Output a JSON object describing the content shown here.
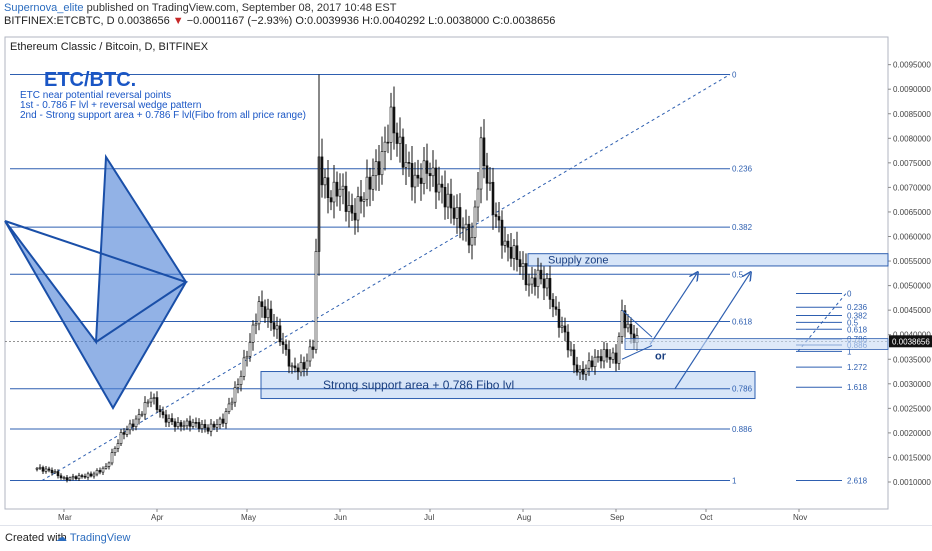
{
  "header": {
    "author": "Supernova_elite",
    "published": "published on TradingView.com, September 08, 2017 10:48 EST",
    "symbol": "BITFINEX:ETCBTC, D",
    "last": "0.0038656",
    "change": "−0.0001167 (−2.93%)",
    "open": "O:0.0039936",
    "high": "H:0.0040292",
    "low": "L:0.0038000",
    "close": "C:0.0038656"
  },
  "chart_data": {
    "type": "candlestick",
    "chart_title": "Ethereum Classic / Bitcoin, D, BITFINEX",
    "price_tag": "0.0038656",
    "y_ticks": [
      "0.0095000",
      "0.0090000",
      "0.0085000",
      "0.0080000",
      "0.0075000",
      "0.0070000",
      "0.0065000",
      "0.0060000",
      "0.0055000",
      "0.0050000",
      "0.0045000",
      "0.0040000",
      "0.0035000",
      "0.0030000",
      "0.0025000",
      "0.0020000",
      "0.0015000",
      "0.0010000"
    ],
    "x_ticks": [
      "Mar",
      "Apr",
      "May",
      "Jun",
      "Jul",
      "Aug",
      "Sep",
      "Oct",
      "Nov"
    ],
    "ylim": [
      0.0007,
      0.0097
    ],
    "close_series": [
      {
        "date": "2017-02-20",
        "close": 0.00128
      },
      {
        "date": "2017-02-25",
        "close": 0.00122
      },
      {
        "date": "2017-03-01",
        "close": 0.00106
      },
      {
        "date": "2017-03-05",
        "close": 0.0011
      },
      {
        "date": "2017-03-10",
        "close": 0.00114
      },
      {
        "date": "2017-03-15",
        "close": 0.0013
      },
      {
        "date": "2017-03-20",
        "close": 0.00195
      },
      {
        "date": "2017-03-25",
        "close": 0.00225
      },
      {
        "date": "2017-03-30",
        "close": 0.00275
      },
      {
        "date": "2017-04-03",
        "close": 0.00232
      },
      {
        "date": "2017-04-08",
        "close": 0.00215
      },
      {
        "date": "2017-04-13",
        "close": 0.0022
      },
      {
        "date": "2017-04-18",
        "close": 0.00208
      },
      {
        "date": "2017-04-23",
        "close": 0.00226
      },
      {
        "date": "2017-04-28",
        "close": 0.003
      },
      {
        "date": "2017-05-02",
        "close": 0.00385
      },
      {
        "date": "2017-05-05",
        "close": 0.0046
      },
      {
        "date": "2017-05-08",
        "close": 0.0044
      },
      {
        "date": "2017-05-12",
        "close": 0.00395
      },
      {
        "date": "2017-05-16",
        "close": 0.0033
      },
      {
        "date": "2017-05-20",
        "close": 0.00335
      },
      {
        "date": "2017-05-23",
        "close": 0.0038
      },
      {
        "date": "2017-05-25",
        "close": 0.0075
      },
      {
        "date": "2017-05-28",
        "close": 0.0068
      },
      {
        "date": "2017-06-01",
        "close": 0.007
      },
      {
        "date": "2017-06-05",
        "close": 0.0064
      },
      {
        "date": "2017-06-10",
        "close": 0.007
      },
      {
        "date": "2017-06-15",
        "close": 0.0076
      },
      {
        "date": "2017-06-18",
        "close": 0.0084
      },
      {
        "date": "2017-06-22",
        "close": 0.0076
      },
      {
        "date": "2017-06-26",
        "close": 0.0071
      },
      {
        "date": "2017-06-30",
        "close": 0.0074
      },
      {
        "date": "2017-07-04",
        "close": 0.007
      },
      {
        "date": "2017-07-08",
        "close": 0.0066
      },
      {
        "date": "2017-07-12",
        "close": 0.0062
      },
      {
        "date": "2017-07-15",
        "close": 0.0059
      },
      {
        "date": "2017-07-18",
        "close": 0.0078
      },
      {
        "date": "2017-07-22",
        "close": 0.0066
      },
      {
        "date": "2017-07-26",
        "close": 0.0058
      },
      {
        "date": "2017-07-30",
        "close": 0.0056
      },
      {
        "date": "2017-08-03",
        "close": 0.005
      },
      {
        "date": "2017-08-06",
        "close": 0.0052
      },
      {
        "date": "2017-08-09",
        "close": 0.005
      },
      {
        "date": "2017-08-12",
        "close": 0.0044
      },
      {
        "date": "2017-08-15",
        "close": 0.004
      },
      {
        "date": "2017-08-18",
        "close": 0.0034
      },
      {
        "date": "2017-08-20",
        "close": 0.0032
      },
      {
        "date": "2017-08-24",
        "close": 0.00345
      },
      {
        "date": "2017-08-28",
        "close": 0.0036
      },
      {
        "date": "2017-09-01",
        "close": 0.0035
      },
      {
        "date": "2017-09-03",
        "close": 0.0044
      },
      {
        "date": "2017-09-06",
        "close": 0.004
      },
      {
        "date": "2017-09-08",
        "close": 0.00387
      }
    ],
    "fib_main": {
      "levels": [
        {
          "label": "0",
          "price": 0.0093
        },
        {
          "label": "0.236",
          "price": 0.00738
        },
        {
          "label": "0.382",
          "price": 0.00619
        },
        {
          "label": "0.5",
          "price": 0.00523
        },
        {
          "label": "0.618",
          "price": 0.00427
        },
        {
          "label": "0.786",
          "price": 0.0029
        },
        {
          "label": "0.886",
          "price": 0.00208
        },
        {
          "label": "1",
          "price": 0.00103
        }
      ]
    },
    "fib_small": {
      "levels": [
        {
          "label": "0",
          "price": 0.00484
        },
        {
          "label": "0.236",
          "price": 0.00456
        },
        {
          "label": "0.382",
          "price": 0.00439
        },
        {
          "label": "0.5",
          "price": 0.00425
        },
        {
          "label": "0.618",
          "price": 0.00411
        },
        {
          "label": "0.786",
          "price": 0.00391
        },
        {
          "label": "0.886",
          "price": 0.00379
        },
        {
          "label": "1",
          "price": 0.00366
        },
        {
          "label": "1.272",
          "price": 0.00334
        },
        {
          "label": "1.618",
          "price": 0.00293
        },
        {
          "label": "2.618",
          "price": 0.00103
        }
      ]
    },
    "annotations": {
      "title": "ETC/BTC.",
      "line1": "ETC near potential reversal points",
      "line2": "1st - 0.786 F lvl + reversal wedge pattern",
      "line3": "2nd - Strong support area + 0.786 F lvl(Fibo from all price range)",
      "supply": "Supply zone",
      "support": "Strong support area + 0.786 Fibo lvl",
      "or": "or"
    },
    "colors": {
      "up": "#ffffff",
      "down": "#111111",
      "fib": "#2e5fb0",
      "accent": "#1a56c5",
      "zone": "#c9dcf5"
    }
  },
  "footer": {
    "created_with": "Created with",
    "logo": "TradingView"
  }
}
